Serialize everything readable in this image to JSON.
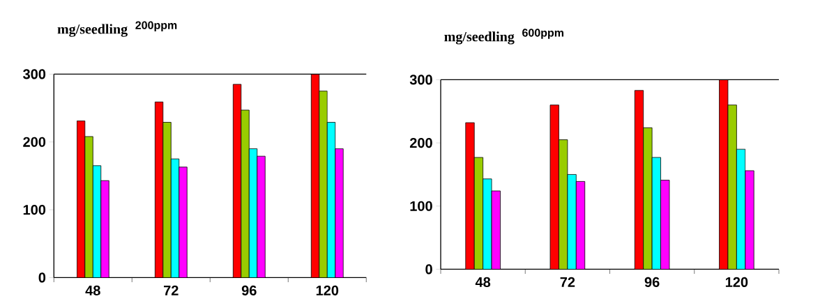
{
  "chart_data": [
    {
      "type": "bar",
      "title": "mg/seedling",
      "subtitle": "200ppm",
      "categories": [
        "48",
        "72",
        "96",
        "120"
      ],
      "ylim": [
        0,
        300
      ],
      "yticks": [
        0,
        100,
        200,
        300
      ],
      "grid": false,
      "series": [
        {
          "color": "#ff0000",
          "values": [
            231,
            259,
            285,
            300
          ]
        },
        {
          "color": "#99cc00",
          "values": [
            208,
            229,
            247,
            275
          ]
        },
        {
          "color": "#00ffff",
          "values": [
            165,
            175,
            190,
            229
          ]
        },
        {
          "color": "#ff00ff",
          "values": [
            143,
            163,
            179,
            190
          ]
        }
      ]
    },
    {
      "type": "bar",
      "title": "mg/seedling",
      "subtitle": "600ppm",
      "categories": [
        "48",
        "72",
        "96",
        "120"
      ],
      "ylim": [
        0,
        300
      ],
      "yticks": [
        0,
        100,
        200,
        300
      ],
      "grid": false,
      "series": [
        {
          "color": "#ff0000",
          "values": [
            232,
            260,
            283,
            300
          ]
        },
        {
          "color": "#99cc00",
          "values": [
            177,
            205,
            224,
            260
          ]
        },
        {
          "color": "#00ffff",
          "values": [
            143,
            150,
            177,
            190
          ]
        },
        {
          "color": "#ff00ff",
          "values": [
            124,
            139,
            141,
            156
          ]
        }
      ]
    }
  ]
}
